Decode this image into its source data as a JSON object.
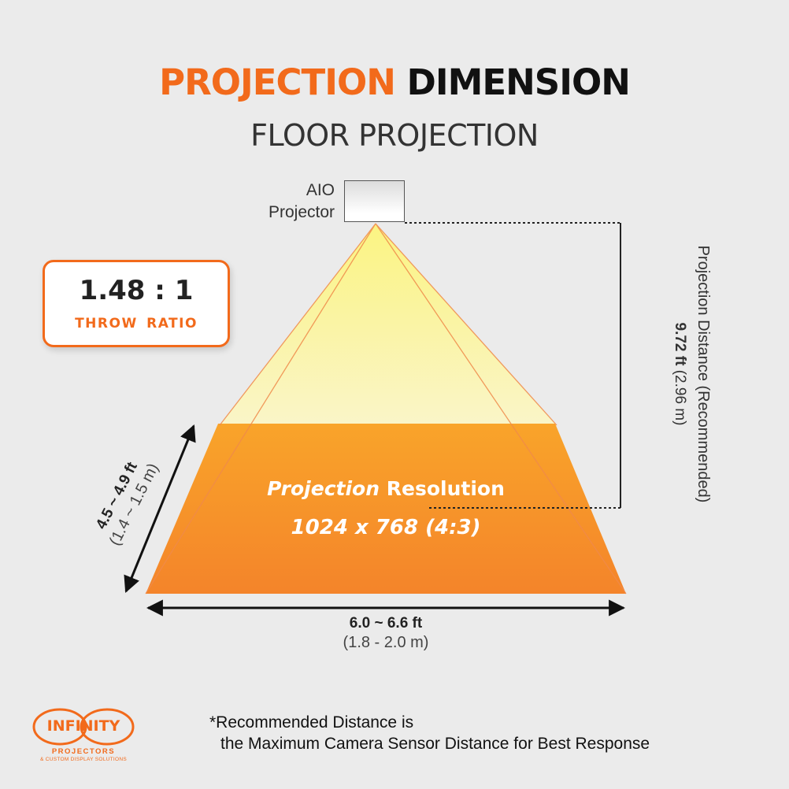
{
  "title": {
    "part1": "PROJECTION",
    "part2": "DIMENSION",
    "subtitle": "FLOOR PROJECTION"
  },
  "projector": {
    "label_line1": "AIO",
    "label_line2": "Projector"
  },
  "throw_ratio": {
    "value": "1.48 : 1",
    "label": "THROW RATIO"
  },
  "projection_distance": {
    "label": "Projection Distance (Recommended)",
    "value_ft": "9.72 ft",
    "value_m": "(2.96 m)"
  },
  "image_height": {
    "value_ft": "4.5 ~ 4.9 ft",
    "value_m": "(1.4 ~ 1.5 m)"
  },
  "image_width": {
    "value_ft": "6.0 ~ 6.6 ft",
    "value_m": "(1.8 - 2.0 m)"
  },
  "resolution": {
    "label_italic": "Projection",
    "label_rest": "Resolution",
    "value": "1024 x 768 (4:3)"
  },
  "footnote": {
    "line1": "*Recommended Distance is",
    "line2": "the Maximum Camera Sensor Distance for Best Response"
  },
  "logo": {
    "word": "INFINITY",
    "sub1": "PROJECTORS",
    "sub2": "& CUSTOM DISPLAY SOLUTIONS"
  },
  "colors": {
    "accent": "#f26a1b",
    "light_beam": "#fbf39a",
    "floor_image": "#f7931e"
  }
}
